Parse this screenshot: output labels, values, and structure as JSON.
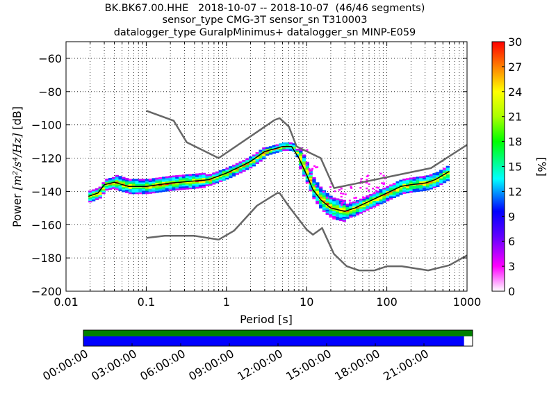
{
  "title_lines": [
    "BK.BK67.00.HHE   2018-10-07 -- 2018-10-07  (46/46 segments)",
    "sensor_type CMG-3T sensor_sn T310003",
    "datalogger_type GuralpMinimus+ datalogger_sn MINP-E059"
  ],
  "chart_data": {
    "type": "heatmap",
    "title": "BK.BK67.00.HHE   2018-10-07 -- 2018-10-07  (46/46 segments)",
    "xlabel": "Period [s]",
    "ylabel_prefix": "Power ",
    "ylabel_math": "[m²/s⁴/Hz]",
    "ylabel_suffix": " [dB]",
    "xscale": "log",
    "xlim": [
      0.01,
      1000
    ],
    "ylim": [
      -200,
      -50
    ],
    "xticks": [
      0.01,
      0.1,
      1,
      10,
      100,
      1000
    ],
    "xtick_labels": [
      "0.01",
      "0.1",
      "1",
      "10",
      "100",
      "1000"
    ],
    "yticks": [
      -200,
      -180,
      -160,
      -140,
      -120,
      -100,
      -80,
      -60
    ],
    "ytick_labels": [
      "−200",
      "−180",
      "−160",
      "−140",
      "−120",
      "−100",
      "−80",
      "−60"
    ],
    "grid": "dotted",
    "colorbar": {
      "label": "[%]",
      "min": 0,
      "max": 30,
      "ticks": [
        0,
        3,
        6,
        9,
        12,
        15,
        18,
        21,
        24,
        27,
        30
      ]
    },
    "series": [
      {
        "name": "",
        "color": "#666666",
        "points": [
          [
            0.1,
            -91.5
          ],
          [
            0.22,
            -97.5
          ],
          [
            0.32,
            -110.5
          ],
          [
            0.8,
            -120
          ],
          [
            4.0,
            -97
          ],
          [
            4.6,
            -96
          ],
          [
            6.0,
            -101
          ],
          [
            7.5,
            -113
          ],
          [
            15.0,
            -120
          ],
          [
            22.0,
            -138
          ],
          [
            354,
            -126
          ],
          [
            1000,
            -112
          ]
        ]
      },
      {
        "name": "",
        "color": "#666666",
        "points": [
          [
            0.1,
            -168
          ],
          [
            0.17,
            -166.7
          ],
          [
            0.4,
            -166.7
          ],
          [
            0.8,
            -169
          ],
          [
            1.24,
            -163.7
          ],
          [
            2.4,
            -148.6
          ],
          [
            4.3,
            -141
          ],
          [
            4.6,
            -141
          ],
          [
            6.0,
            -149
          ],
          [
            10.0,
            -163
          ],
          [
            12.0,
            -166
          ],
          [
            15.6,
            -162
          ],
          [
            21.9,
            -177.6
          ],
          [
            31.6,
            -185
          ],
          [
            45.0,
            -187.5
          ],
          [
            70.0,
            -187.5
          ],
          [
            101,
            -185
          ],
          [
            154,
            -185
          ],
          [
            328,
            -187.5
          ],
          [
            600,
            -184.4
          ],
          [
            1000,
            -178.5
          ]
        ]
      },
      {
        "name": "",
        "color": "#000000",
        "points": [
          [
            0.019,
            -143
          ],
          [
            0.025,
            -141
          ],
          [
            0.03,
            -136
          ],
          [
            0.04,
            -134.5
          ],
          [
            0.06,
            -137
          ],
          [
            0.1,
            -137
          ],
          [
            0.2,
            -135
          ],
          [
            0.35,
            -134
          ],
          [
            0.6,
            -133
          ],
          [
            1.0,
            -129
          ],
          [
            1.5,
            -125
          ],
          [
            2.0,
            -122
          ],
          [
            3.0,
            -116
          ],
          [
            5.0,
            -113
          ],
          [
            6.5,
            -113
          ],
          [
            8.0,
            -120
          ],
          [
            10.0,
            -130
          ],
          [
            12.0,
            -139
          ],
          [
            15.0,
            -145
          ],
          [
            20.0,
            -150
          ],
          [
            30.0,
            -152
          ],
          [
            40.0,
            -150
          ],
          [
            60.0,
            -146
          ],
          [
            100,
            -141
          ],
          [
            150,
            -137
          ],
          [
            200,
            -136
          ],
          [
            300,
            -135
          ],
          [
            400,
            -133
          ],
          [
            600,
            -128
          ]
        ]
      }
    ],
    "time_axis": {
      "tick_labels": [
        "00:00:00",
        "03:00:00",
        "06:00:00",
        "09:00:00",
        "12:00:00",
        "15:00:00",
        "18:00:00",
        "21:00:00"
      ],
      "data_coverage_fraction": 1.0,
      "psd_coverage_fraction": 0.978,
      "data_color": "#008000",
      "psd_color": "#0000ff"
    }
  }
}
